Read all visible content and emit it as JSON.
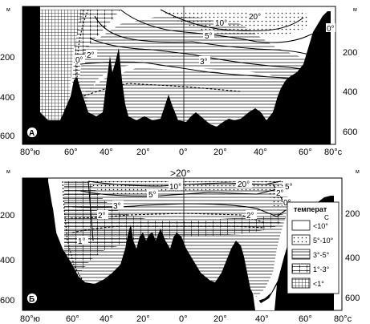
{
  "units": {
    "depth": "м",
    "lat_c": "°c"
  },
  "panel_a": {
    "label": "А",
    "left_depth_ticks": [
      "200",
      "400",
      "600"
    ],
    "right_depth_ticks": [
      "200",
      "400",
      "600"
    ],
    "lat_ticks": [
      "80°ю",
      "60°",
      "40°",
      "20°",
      "0°",
      "20°",
      "40°",
      "60°",
      "80°с"
    ],
    "isotherms": [
      "20°",
      "10°",
      "5°",
      "0°",
      "0°",
      "2°",
      "3°"
    ]
  },
  "panel_b": {
    "label": "Б",
    "left_depth_ticks": [
      "200",
      "400",
      "600"
    ],
    "right_depth_ticks": [
      "200",
      "400",
      "600"
    ],
    "lat_ticks": [
      "80°ю",
      "60°",
      "40°",
      "20°",
      "0°",
      "20°",
      "40°",
      "60°",
      "80°с"
    ],
    "top_label": ">20°",
    "isotherms": [
      "10°",
      "20°",
      "5°",
      "3°",
      "2°",
      "2°",
      "1°",
      "0°",
      "2°",
      "5°"
    ]
  },
  "legend": {
    "title": "температ",
    "unit": "С",
    "items": [
      "<10°",
      "5°-10°",
      "3°-5°",
      "1°-3°",
      "<1°"
    ]
  }
}
